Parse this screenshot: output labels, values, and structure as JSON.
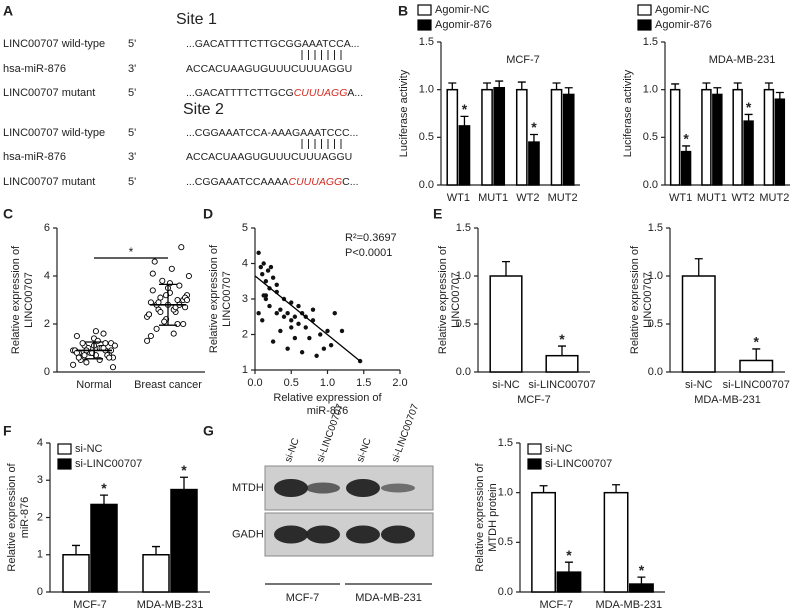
{
  "panel_labels": [
    "A",
    "B",
    "C",
    "D",
    "E",
    "F",
    "G"
  ],
  "sequence_panel": {
    "sites": [
      {
        "title": "Site 1",
        "rows": [
          {
            "name": "LINC00707 wild-type",
            "end": "5'",
            "seq": [
              {
                "text": "...GACATTTTCTTGCGGAAATCCA..."
              }
            ]
          },
          {
            "name": "hsa-miR-876",
            "end": "3'",
            "seq": [
              {
                "text": "ACCACUAAGUGUUUCUUUAGGU"
              }
            ]
          },
          {
            "name": "LINC00707 mutant",
            "end": "5'",
            "seq": [
              {
                "text": "...GACATTTTCTTGCG"
              },
              {
                "text": "CUUUAGG",
                "color": "#d42a20"
              },
              {
                "text": "A..."
              }
            ]
          }
        ]
      },
      {
        "title": "Site 2",
        "rows": [
          {
            "name": "LINC00707 wild-type",
            "end": "5'",
            "seq": [
              {
                "text": "...CGGAAATCCA-AAAGAAATCCC..."
              }
            ]
          },
          {
            "name": "hsa-miR-876",
            "end": "3'",
            "seq": [
              {
                "text": "ACCACUAAGUGUUUCUUUAGGU"
              }
            ]
          },
          {
            "name": "LINC00707 mutant",
            "end": "5'",
            "seq": [
              {
                "text": "...CGGAAATCCAAAA"
              },
              {
                "text": "CUUUAGG",
                "color": "#d42a20"
              },
              {
                "text": "C..."
              }
            ]
          }
        ]
      }
    ]
  },
  "blot": {
    "lanes": [
      "si-NC",
      "si-LINC00707",
      "si-NC",
      "si-LINC00707"
    ],
    "rows": [
      "MTDH",
      "GADH"
    ],
    "groups": [
      "MCF-7",
      "MDA-MB-231"
    ]
  },
  "chart_data": [
    {
      "type": "bar",
      "title": "MCF-7",
      "ylabel": [
        "Luciferase activity"
      ],
      "categories": [
        "WT1",
        "MUT1",
        "WT2",
        "MUT2"
      ],
      "series": [
        {
          "name": "Agomir-NC",
          "color": "#ffffff",
          "values": [
            1.0,
            1.0,
            1.0,
            1.0
          ],
          "errors": [
            0.07,
            0.07,
            0.08,
            0.07
          ]
        },
        {
          "name": "Agomir-876",
          "color": "#000000",
          "values": [
            0.62,
            1.02,
            0.45,
            0.95
          ],
          "errors": [
            0.1,
            0.07,
            0.08,
            0.07
          ],
          "significance": [
            "*",
            null,
            "*",
            null
          ]
        }
      ],
      "ylim": [
        0,
        1.5
      ],
      "yticks": [
        {
          "value": 0,
          "label": "0.0"
        },
        {
          "value": 0.5,
          "label": "0.5"
        },
        {
          "value": 1,
          "label": "1.0"
        },
        {
          "value": 1.5,
          "label": "1.5"
        }
      ]
    },
    {
      "type": "bar",
      "title": "MDA-MB-231",
      "ylabel": [
        "Luciferase activity"
      ],
      "categories": [
        "WT1",
        "MUT1",
        "WT2",
        "MUT2"
      ],
      "series": [
        {
          "name": "Agomir-NC",
          "color": "#ffffff",
          "values": [
            1.0,
            1.0,
            1.0,
            1.0
          ],
          "errors": [
            0.06,
            0.07,
            0.07,
            0.07
          ]
        },
        {
          "name": "Agomir-876",
          "color": "#000000",
          "values": [
            0.35,
            0.95,
            0.67,
            0.9
          ],
          "errors": [
            0.06,
            0.07,
            0.07,
            0.07
          ],
          "significance": [
            "*",
            null,
            "*",
            null
          ]
        }
      ],
      "ylim": [
        0,
        1.5
      ],
      "yticks": [
        {
          "value": 0,
          "label": "0.0"
        },
        {
          "value": 0.5,
          "label": "0.5"
        },
        {
          "value": 1,
          "label": "1.0"
        },
        {
          "value": 1.5,
          "label": "1.5"
        }
      ]
    },
    {
      "type": "dotplot",
      "ylabel": [
        "Relative expression of",
        "LINC00707"
      ],
      "categories": [
        "Normal",
        "Breast cancer"
      ],
      "groups": [
        {
          "values": [
            0.3,
            0.5,
            0.6,
            0.7,
            0.8,
            0.9,
            1.0,
            1.1,
            1.2,
            1.4,
            1.5,
            1.6,
            0.4,
            0.6,
            0.7,
            0.8,
            0.9,
            1.0,
            1.1,
            1.3,
            0.5,
            0.7,
            0.8,
            0.9,
            1.0,
            1.2,
            0.6,
            0.8,
            0.9,
            1.0,
            0.7,
            0.9,
            1.1,
            0.8,
            1.0,
            0.9,
            0.2,
            1.7,
            0.6,
            1.2
          ],
          "mean": 0.9,
          "sd": 0.35
        },
        {
          "values": [
            1.3,
            1.6,
            1.8,
            2.0,
            2.2,
            2.4,
            2.5,
            2.6,
            2.7,
            2.8,
            2.9,
            3.0,
            3.1,
            3.2,
            3.3,
            3.4,
            3.6,
            3.8,
            4.0,
            4.3,
            4.6,
            5.2,
            2.1,
            2.3,
            2.6,
            2.8,
            3.0,
            3.2,
            2.4,
            2.7,
            2.9,
            3.1,
            3.5,
            1.5,
            2.0,
            2.5,
            3.0,
            3.7,
            4.1,
            2.8
          ],
          "mean": 2.8,
          "sd": 0.85
        }
      ],
      "significance": "*",
      "ylim": [
        0,
        6
      ],
      "yticks": [
        0,
        2,
        4,
        6
      ]
    },
    {
      "type": "scatter",
      "xlabel": [
        "Relative expression of",
        "miR-876"
      ],
      "ylabel": [
        "Relative expression of",
        "LINC00707"
      ],
      "x": [
        0.05,
        0.08,
        0.1,
        0.12,
        0.15,
        0.18,
        0.2,
        0.22,
        0.25,
        0.05,
        0.1,
        0.15,
        0.2,
        0.3,
        0.35,
        0.4,
        0.45,
        0.5,
        0.55,
        0.6,
        0.65,
        0.7,
        0.3,
        0.4,
        0.5,
        0.6,
        0.7,
        0.8,
        0.9,
        1.0,
        1.1,
        0.25,
        0.35,
        0.45,
        0.55,
        0.75,
        0.85,
        0.95,
        1.05,
        1.2,
        0.15,
        0.3,
        0.5,
        0.8,
        1.45,
        0.12,
        0.65
      ],
      "y": [
        4.3,
        3.9,
        3.7,
        4.0,
        3.5,
        3.8,
        3.3,
        3.9,
        3.6,
        2.6,
        2.4,
        3.0,
        2.8,
        2.6,
        2.7,
        2.5,
        2.6,
        2.4,
        2.5,
        2.3,
        2.6,
        2.5,
        3.2,
        3.0,
        2.9,
        2.8,
        2.2,
        2.4,
        2.0,
        2.1,
        2.6,
        1.8,
        2.1,
        1.6,
        1.9,
        1.9,
        1.4,
        1.6,
        1.7,
        2.1,
        3.1,
        3.4,
        2.2,
        2.7,
        1.25,
        3.1,
        1.5
      ],
      "trendline": {
        "x": [
          0,
          1.45
        ],
        "y": [
          3.65,
          1.25
        ]
      },
      "annotations": [
        "R²=0.3697",
        "P<0.0001"
      ],
      "xlim": [
        0,
        2
      ],
      "xticks": [
        {
          "value": 0,
          "label": "0.0"
        },
        {
          "value": 0.5,
          "label": "0.5"
        },
        {
          "value": 1,
          "label": "1.0"
        },
        {
          "value": 1.5,
          "label": "1.5"
        },
        {
          "value": 2,
          "label": "2.0"
        }
      ],
      "ylim": [
        1,
        5
      ],
      "yticks": [
        1,
        2,
        3,
        4,
        5
      ]
    },
    {
      "type": "bar",
      "ylabel": [
        "Relative expression of",
        "LINC00707"
      ],
      "xlabel": "MCF-7",
      "categories": [
        "si-NC",
        "si-LINC00707"
      ],
      "series": [
        {
          "color": "#ffffff",
          "values": [
            1.0,
            0.17
          ],
          "errors": [
            0.15,
            0.1
          ],
          "significance": [
            null,
            "*"
          ]
        }
      ],
      "ylim": [
        0,
        1.5
      ],
      "yticks": [
        {
          "value": 0,
          "label": "0.0"
        },
        {
          "value": 0.5,
          "label": "0.5"
        },
        {
          "value": 1,
          "label": "1.0"
        },
        {
          "value": 1.5,
          "label": "1.5"
        }
      ]
    },
    {
      "type": "bar",
      "ylabel": [
        "Relative expression of",
        "LINC00707"
      ],
      "xlabel": "MDA-MB-231",
      "categories": [
        "si-NC",
        "si-LINC00707"
      ],
      "series": [
        {
          "color": "#ffffff",
          "values": [
            1.0,
            0.12
          ],
          "errors": [
            0.18,
            0.12
          ],
          "significance": [
            null,
            "*"
          ]
        }
      ],
      "ylim": [
        0,
        1.5
      ],
      "yticks": [
        {
          "value": 0,
          "label": "0.0"
        },
        {
          "value": 0.5,
          "label": "0.5"
        },
        {
          "value": 1,
          "label": "1.0"
        },
        {
          "value": 1.5,
          "label": "1.5"
        }
      ]
    },
    {
      "type": "bar",
      "ylabel": [
        "Relative expression of",
        "miR-876"
      ],
      "categories": [
        "MCF-7",
        "MDA-MB-231"
      ],
      "series": [
        {
          "name": "si-NC",
          "color": "#ffffff",
          "values": [
            1.0,
            1.0
          ],
          "errors": [
            0.25,
            0.22
          ]
        },
        {
          "name": "si-LINC00707",
          "color": "#000000",
          "values": [
            2.35,
            2.75
          ],
          "errors": [
            0.25,
            0.33
          ],
          "significance": [
            "*",
            "*"
          ]
        }
      ],
      "ylim": [
        0,
        4
      ],
      "yticks": [
        0,
        1,
        2,
        3,
        4
      ]
    },
    {
      "type": "bar",
      "ylabel": [
        "Relative expression of",
        "MTDH protein"
      ],
      "categories": [
        "MCF-7",
        "MDA-MB-231"
      ],
      "series": [
        {
          "name": "si-NC",
          "color": "#ffffff",
          "values": [
            1.0,
            1.0
          ],
          "errors": [
            0.07,
            0.08
          ]
        },
        {
          "name": "si-LINC00707",
          "color": "#000000",
          "values": [
            0.2,
            0.08
          ],
          "errors": [
            0.1,
            0.07
          ],
          "significance": [
            "*",
            "*"
          ]
        }
      ],
      "ylim": [
        0,
        1.5
      ],
      "yticks": [
        {
          "value": 0,
          "label": "0.0"
        },
        {
          "value": 0.5,
          "label": "0.5"
        },
        {
          "value": 1,
          "label": "1.0"
        },
        {
          "value": 1.5,
          "label": "1.5"
        }
      ]
    }
  ]
}
